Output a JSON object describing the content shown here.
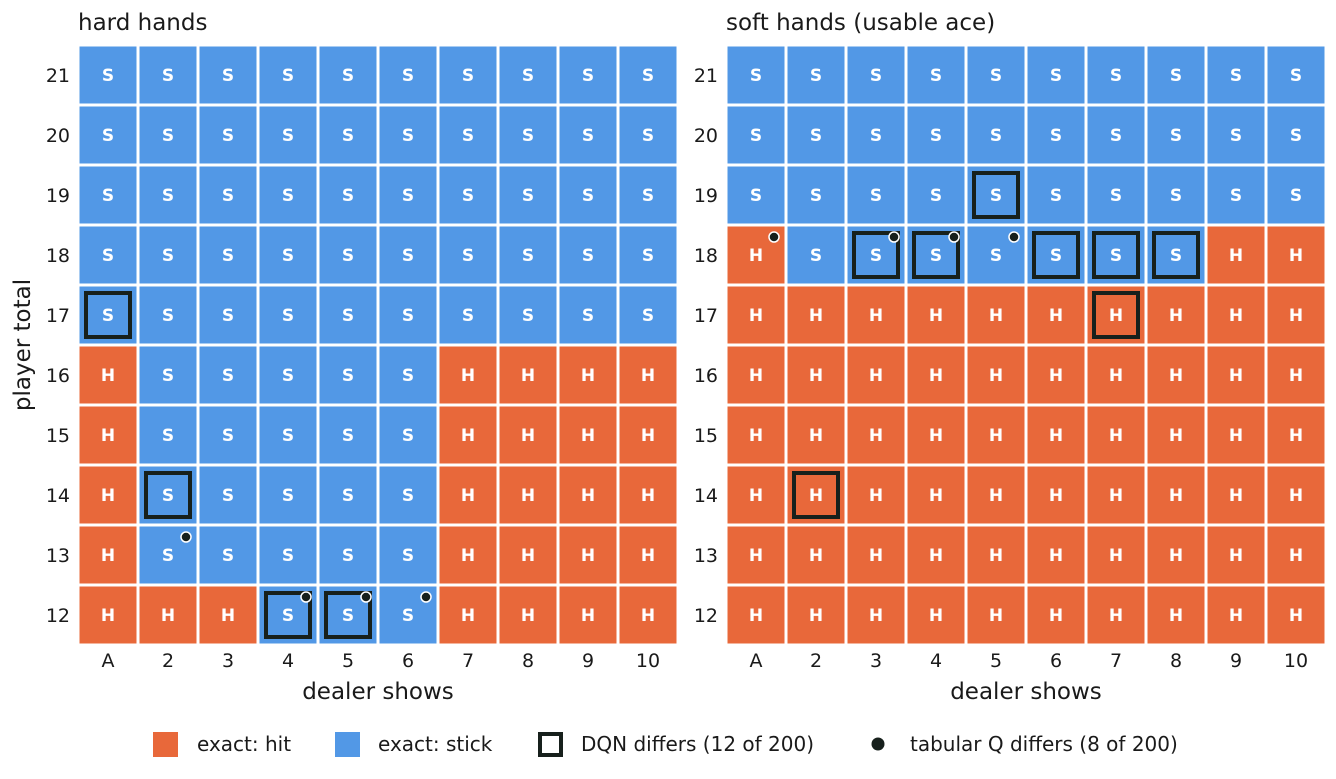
{
  "colors": {
    "hit": "#e8683a",
    "stick": "#5298e6",
    "dqn_border": "#17201c",
    "tabular_dot": "#17201c",
    "cell_text": "#ffffff",
    "axis_text": "#1a1a1a"
  },
  "chart_data": [
    {
      "type": "heatmap",
      "title": "hard hands",
      "xlabel": "dealer shows",
      "ylabel": "player total",
      "x": [
        "A",
        "2",
        "3",
        "4",
        "5",
        "6",
        "7",
        "8",
        "9",
        "10"
      ],
      "y": [
        "21",
        "20",
        "19",
        "18",
        "17",
        "16",
        "15",
        "14",
        "13",
        "12"
      ],
      "grid": [
        [
          "S",
          "S",
          "S",
          "S",
          "S",
          "S",
          "S",
          "S",
          "S",
          "S"
        ],
        [
          "S",
          "S",
          "S",
          "S",
          "S",
          "S",
          "S",
          "S",
          "S",
          "S"
        ],
        [
          "S",
          "S",
          "S",
          "S",
          "S",
          "S",
          "S",
          "S",
          "S",
          "S"
        ],
        [
          "S",
          "S",
          "S",
          "S",
          "S",
          "S",
          "S",
          "S",
          "S",
          "S"
        ],
        [
          "S",
          "S",
          "S",
          "S",
          "S",
          "S",
          "S",
          "S",
          "S",
          "S"
        ],
        [
          "H",
          "S",
          "S",
          "S",
          "S",
          "S",
          "H",
          "H",
          "H",
          "H"
        ],
        [
          "H",
          "S",
          "S",
          "S",
          "S",
          "S",
          "H",
          "H",
          "H",
          "H"
        ],
        [
          "H",
          "S",
          "S",
          "S",
          "S",
          "S",
          "H",
          "H",
          "H",
          "H"
        ],
        [
          "H",
          "S",
          "S",
          "S",
          "S",
          "S",
          "H",
          "H",
          "H",
          "H"
        ],
        [
          "H",
          "H",
          "H",
          "S",
          "S",
          "S",
          "H",
          "H",
          "H",
          "H"
        ]
      ],
      "dqn_differs": [
        {
          "dealer": "A",
          "player": "17"
        },
        {
          "dealer": "2",
          "player": "14"
        },
        {
          "dealer": "4",
          "player": "12"
        },
        {
          "dealer": "5",
          "player": "12"
        }
      ],
      "tabular_differs": [
        {
          "dealer": "2",
          "player": "13"
        },
        {
          "dealer": "4",
          "player": "12"
        },
        {
          "dealer": "5",
          "player": "12"
        },
        {
          "dealer": "6",
          "player": "12"
        }
      ]
    },
    {
      "type": "heatmap",
      "title": "soft hands (usable ace)",
      "xlabel": "dealer shows",
      "ylabel": "",
      "x": [
        "A",
        "2",
        "3",
        "4",
        "5",
        "6",
        "7",
        "8",
        "9",
        "10"
      ],
      "y": [
        "21",
        "20",
        "19",
        "18",
        "17",
        "16",
        "15",
        "14",
        "13",
        "12"
      ],
      "grid": [
        [
          "S",
          "S",
          "S",
          "S",
          "S",
          "S",
          "S",
          "S",
          "S",
          "S"
        ],
        [
          "S",
          "S",
          "S",
          "S",
          "S",
          "S",
          "S",
          "S",
          "S",
          "S"
        ],
        [
          "S",
          "S",
          "S",
          "S",
          "S",
          "S",
          "S",
          "S",
          "S",
          "S"
        ],
        [
          "H",
          "S",
          "S",
          "S",
          "S",
          "S",
          "S",
          "S",
          "H",
          "H"
        ],
        [
          "H",
          "H",
          "H",
          "H",
          "H",
          "H",
          "H",
          "H",
          "H",
          "H"
        ],
        [
          "H",
          "H",
          "H",
          "H",
          "H",
          "H",
          "H",
          "H",
          "H",
          "H"
        ],
        [
          "H",
          "H",
          "H",
          "H",
          "H",
          "H",
          "H",
          "H",
          "H",
          "H"
        ],
        [
          "H",
          "H",
          "H",
          "H",
          "H",
          "H",
          "H",
          "H",
          "H",
          "H"
        ],
        [
          "H",
          "H",
          "H",
          "H",
          "H",
          "H",
          "H",
          "H",
          "H",
          "H"
        ],
        [
          "H",
          "H",
          "H",
          "H",
          "H",
          "H",
          "H",
          "H",
          "H",
          "H"
        ]
      ],
      "dqn_differs": [
        {
          "dealer": "5",
          "player": "19"
        },
        {
          "dealer": "3",
          "player": "18"
        },
        {
          "dealer": "4",
          "player": "18"
        },
        {
          "dealer": "6",
          "player": "18"
        },
        {
          "dealer": "7",
          "player": "18"
        },
        {
          "dealer": "8",
          "player": "18"
        },
        {
          "dealer": "7",
          "player": "17"
        },
        {
          "dealer": "2",
          "player": "14"
        }
      ],
      "tabular_differs": [
        {
          "dealer": "A",
          "player": "18"
        },
        {
          "dealer": "3",
          "player": "18"
        },
        {
          "dealer": "4",
          "player": "18"
        },
        {
          "dealer": "5",
          "player": "18"
        }
      ]
    }
  ],
  "legend": {
    "placement": "bottom",
    "items": [
      {
        "key": "hit",
        "label": "exact: hit"
      },
      {
        "key": "stick",
        "label": "exact: stick"
      },
      {
        "key": "dqn",
        "label": "DQN differs (12 of 200)"
      },
      {
        "key": "tabular",
        "label": "tabular Q differs (8 of 200)"
      }
    ]
  }
}
